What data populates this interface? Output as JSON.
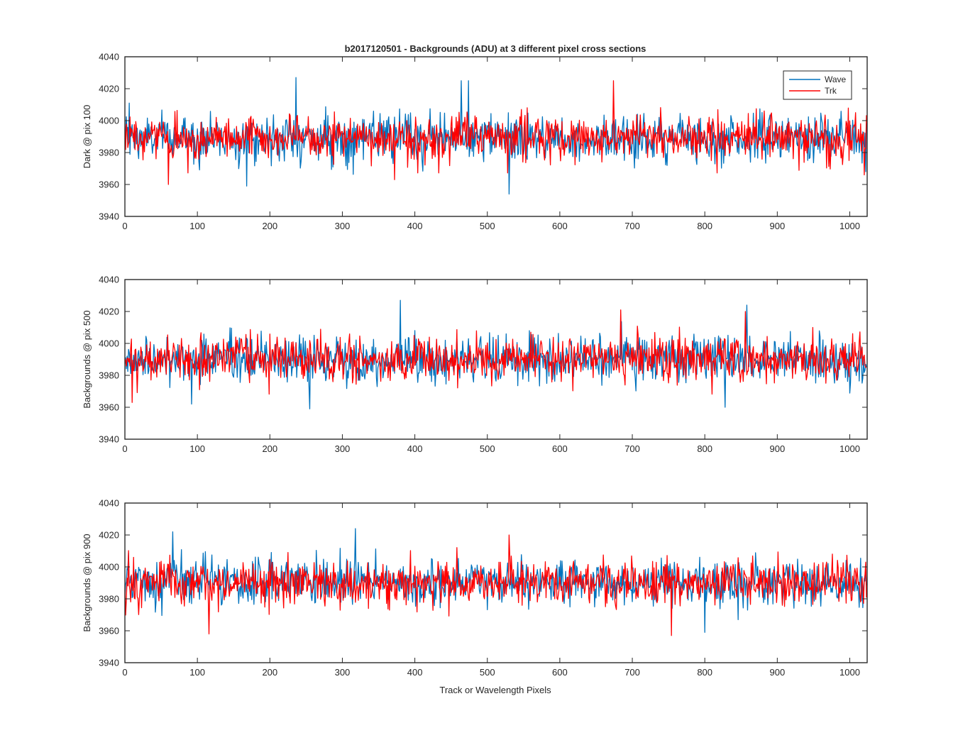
{
  "colors": {
    "wave": "#0072BD",
    "trk": "#FF0000",
    "axis": "#262626"
  },
  "chart_data": {
    "type": "line",
    "title": "b2017120501 - Backgrounds (ADU) at 3 different pixel cross sections",
    "xlabel": "Track or Wavelength Pixels",
    "xlim": [
      0,
      1024
    ],
    "xticks": [
      0,
      100,
      200,
      300,
      400,
      500,
      600,
      700,
      800,
      900,
      1000
    ],
    "legend": {
      "placement": "top-right",
      "entries": [
        "Wave",
        "Trk"
      ]
    },
    "grid": false,
    "subplots": [
      {
        "ylabel": "Dark @ pix 100",
        "ylim": [
          3940,
          4040
        ],
        "yticks": [
          3940,
          3960,
          3980,
          4000,
          4020,
          4040
        ],
        "series": [
          {
            "name": "Wave",
            "color": "#0072BD",
            "n": 1024,
            "mean": 3989,
            "std": 7.2,
            "spikes": [
              [
                6,
                4011
              ],
              [
                168,
                3959
              ],
              [
                236,
                4027
              ],
              [
                464,
                4025
              ],
              [
                474,
                4025
              ],
              [
                530,
                3954
              ],
              [
                1022,
                3968
              ]
            ]
          },
          {
            "name": "Trk",
            "color": "#FF0000",
            "n": 1024,
            "mean": 3989,
            "std": 6.8,
            "spikes": [
              [
                60,
                3960
              ],
              [
                372,
                3963
              ],
              [
                674,
                4025
              ],
              [
                1020,
                3966
              ]
            ]
          }
        ]
      },
      {
        "ylabel": "Backgrounds @ pix 500",
        "ylim": [
          3940,
          4040
        ],
        "yticks": [
          3940,
          3960,
          3980,
          4000,
          4020,
          4040
        ],
        "series": [
          {
            "name": "Wave",
            "color": "#0072BD",
            "n": 1024,
            "mean": 3990,
            "std": 7.4,
            "spikes": [
              [
                92,
                3962
              ],
              [
                255,
                3959
              ],
              [
                380,
                4027
              ],
              [
                828,
                3960
              ],
              [
                858,
                4024
              ]
            ]
          },
          {
            "name": "Trk",
            "color": "#FF0000",
            "n": 1024,
            "mean": 3990,
            "std": 6.8,
            "spikes": [
              [
                10,
                3963
              ],
              [
                684,
                4021
              ],
              [
                856,
                4020
              ]
            ]
          }
        ]
      },
      {
        "ylabel": "Backgrounds @ pix 900",
        "ylim": [
          3940,
          4040
        ],
        "yticks": [
          3940,
          3960,
          3980,
          4000,
          4020,
          4040
        ],
        "series": [
          {
            "name": "Wave",
            "color": "#0072BD",
            "n": 1024,
            "mean": 3990,
            "std": 7.2,
            "spikes": [
              [
                66,
                4022
              ],
              [
                318,
                4024
              ],
              [
                800,
                3959
              ]
            ]
          },
          {
            "name": "Trk",
            "color": "#FF0000",
            "n": 1024,
            "mean": 3990,
            "std": 6.9,
            "spikes": [
              [
                116,
                3958
              ],
              [
                754,
                3957
              ],
              [
                530,
                4020
              ]
            ]
          }
        ]
      }
    ]
  }
}
